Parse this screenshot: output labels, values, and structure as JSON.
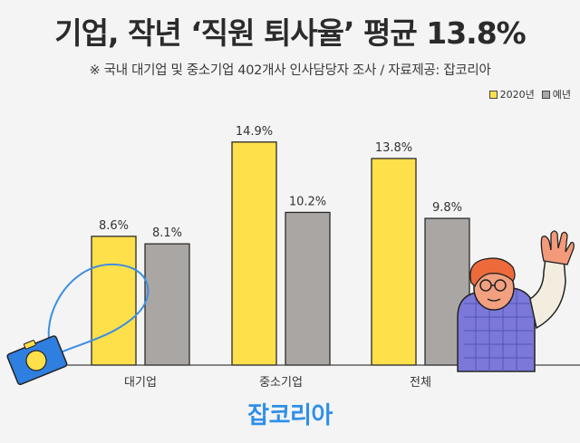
{
  "title": "기업, 작년 ‘직원 퇴사율’ 평균 13.8%",
  "subtitle": "※ 국내 대기업 및 중소기업 402개사 인사담당자 조사 / 자료제공: 잡코리아",
  "brand": "잡코리아",
  "colors": {
    "series_2020": "#fde04a",
    "series_prev": "#aaa6a4",
    "accent_brand": "#2f8fe8",
    "bar_outline": "#2b2b2b"
  },
  "chart_data": {
    "type": "bar",
    "categories": [
      "대기업",
      "중소기업",
      "전체"
    ],
    "series": [
      {
        "name": "2020년",
        "values": [
          8.6,
          14.9,
          13.8
        ],
        "labels": [
          "8.6%",
          "14.9%",
          "13.8%"
        ]
      },
      {
        "name": "예년",
        "values": [
          8.1,
          10.2,
          9.8
        ],
        "labels": [
          "8.1%",
          "10.2%",
          "9.8%"
        ]
      }
    ],
    "unit": "%",
    "ylim": [
      0,
      16.4
    ],
    "grid": false,
    "legend_position": "top-right"
  }
}
